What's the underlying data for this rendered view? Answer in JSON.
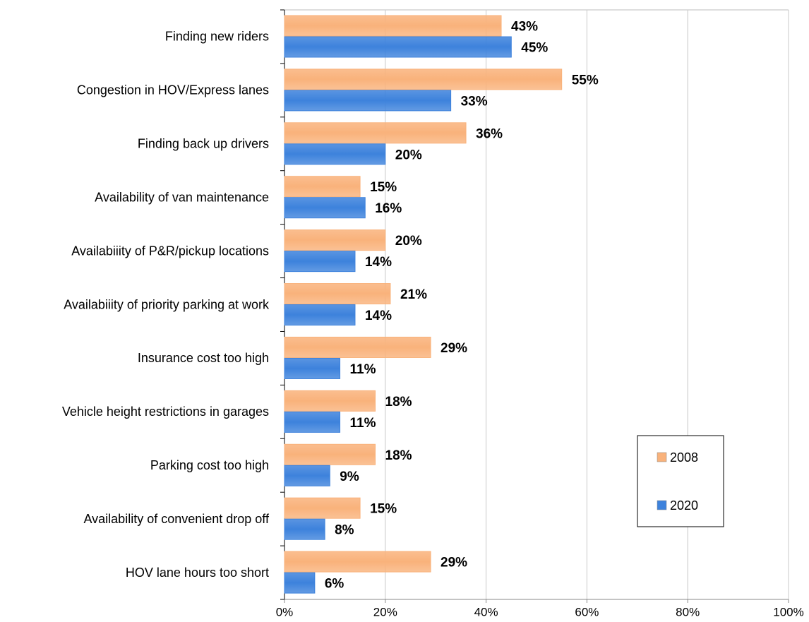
{
  "chart_data": {
    "type": "barh",
    "categories": [
      "Finding new riders",
      "Congestion in HOV/Express lanes",
      "Finding back up drivers",
      "Availability of van maintenance",
      "Availabiiity of P&R/pickup locations",
      "Availabiiity of priority parking at work",
      "Insurance cost too high",
      "Vehicle height restrictions in garages",
      "Parking cost too high",
      "Availability of convenient drop off",
      "HOV lane hours too short"
    ],
    "series": [
      {
        "name": "2008",
        "color": "#f9b27b",
        "values": [
          43,
          55,
          36,
          15,
          20,
          21,
          29,
          18,
          18,
          15,
          29
        ],
        "value_labels": [
          "43%",
          "55%",
          "36%",
          "15%",
          "20%",
          "21%",
          "29%",
          "18%",
          "18%",
          "15%",
          "29%"
        ]
      },
      {
        "name": "2020",
        "color": "#3d82dc",
        "values": [
          45,
          33,
          20,
          16,
          14,
          14,
          11,
          11,
          9,
          8,
          6
        ],
        "value_labels": [
          "45%",
          "33%",
          "20%",
          "16%",
          "14%",
          "14%",
          "11%",
          "11%",
          "9%",
          "8%",
          "6%"
        ]
      }
    ],
    "xlim": [
      0,
      100
    ],
    "xticks": [
      {
        "value": 0,
        "label": "0%"
      },
      {
        "value": 20,
        "label": "20%"
      },
      {
        "value": 40,
        "label": "40%"
      },
      {
        "value": 60,
        "label": "60%"
      },
      {
        "value": 80,
        "label": "80%"
      },
      {
        "value": 100,
        "label": "100%"
      }
    ],
    "grid": true,
    "legend": "right"
  }
}
